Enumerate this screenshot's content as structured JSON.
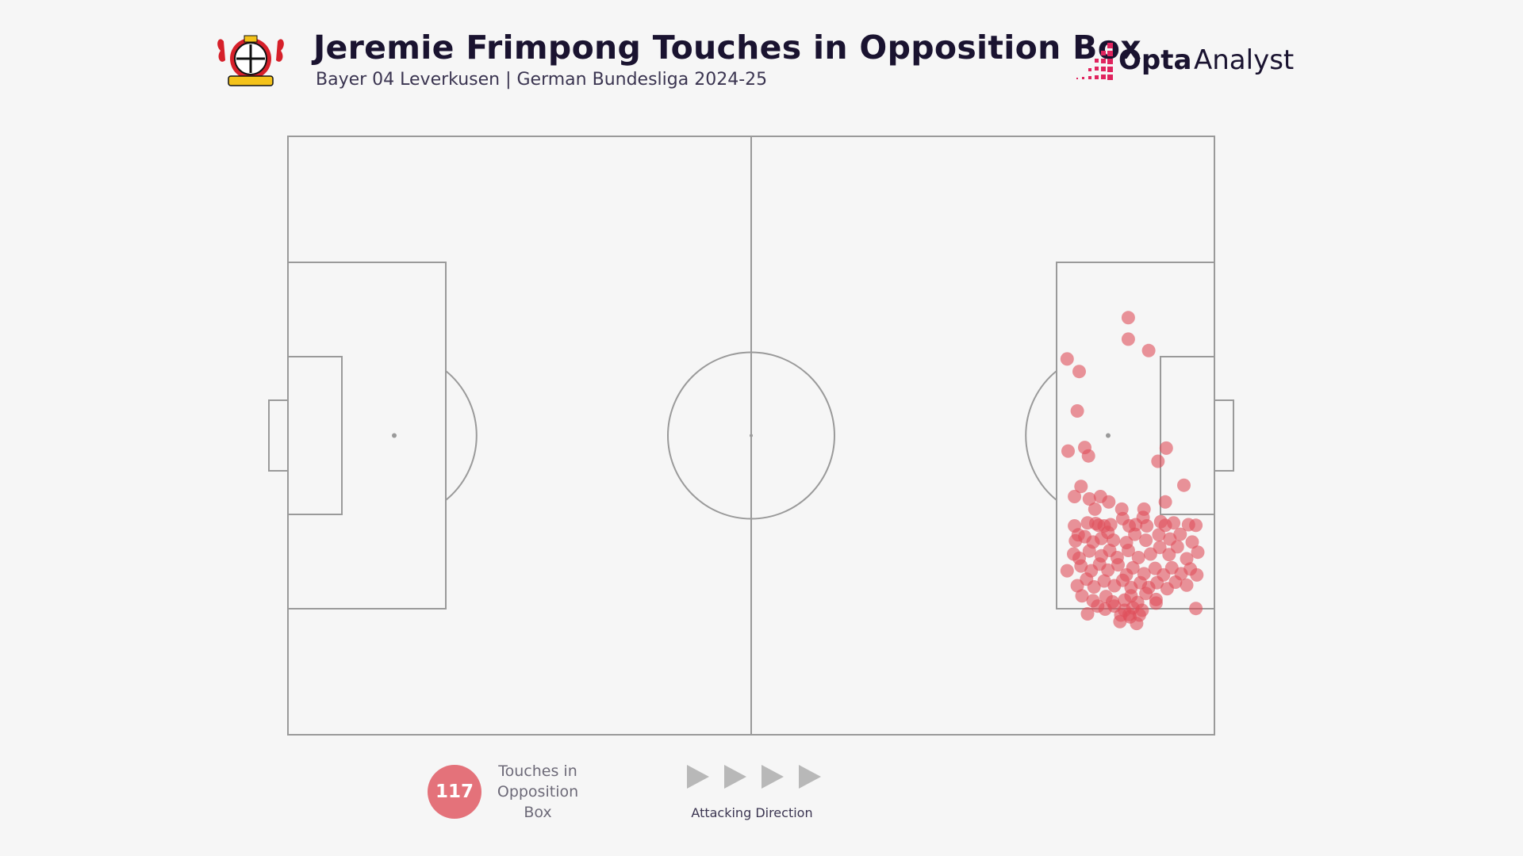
{
  "header": {
    "title": "Jeremie Frimpong Touches in Opposition Box",
    "subtitle": "Bayer 04 Leverkusen | German Bundesliga 2024-25",
    "brand_bold": "Opta",
    "brand_light": "Analyst",
    "crest_icon": "bayer-leverkusen-crest-icon",
    "brand_icon": "opta-pixel-mark-icon"
  },
  "legend": {
    "count": "117",
    "count_label": "Touches in Opposition Box",
    "direction_label": "Attacking Direction",
    "direction_icon": "play-arrow-icon"
  },
  "colors": {
    "background": "#f6f6f6",
    "pitch_lines": "#9a9a9a",
    "touch_marker": "#e04e5a",
    "legend_badge": "#e4727a"
  },
  "chart_data": {
    "type": "scatter",
    "pitch": "horizontal full pitch, attacking left to right",
    "xlim": [
      0,
      100
    ],
    "ylim": [
      0,
      100
    ],
    "total_touches": 117,
    "points": [
      [
        90.7,
        30.3
      ],
      [
        90.7,
        33.9
      ],
      [
        92.9,
        35.8
      ],
      [
        84.1,
        37.2
      ],
      [
        85.4,
        39.3
      ],
      [
        85.2,
        45.9
      ],
      [
        84.2,
        52.6
      ],
      [
        86.0,
        52.0
      ],
      [
        86.4,
        53.4
      ],
      [
        94.8,
        52.1
      ],
      [
        93.9,
        54.3
      ],
      [
        96.7,
        58.3
      ],
      [
        85.6,
        58.5
      ],
      [
        94.7,
        61.1
      ],
      [
        84.9,
        60.2
      ],
      [
        86.5,
        60.6
      ],
      [
        87.7,
        60.2
      ],
      [
        88.6,
        61.1
      ],
      [
        87.1,
        62.3
      ],
      [
        90.0,
        62.3
      ],
      [
        92.4,
        62.3
      ],
      [
        84.9,
        65.1
      ],
      [
        85.3,
        66.6
      ],
      [
        86.3,
        64.6
      ],
      [
        87.2,
        64.7
      ],
      [
        87.5,
        65.0
      ],
      [
        88.1,
        65.1
      ],
      [
        88.8,
        64.9
      ],
      [
        90.1,
        63.9
      ],
      [
        90.8,
        65.1
      ],
      [
        91.5,
        64.9
      ],
      [
        92.3,
        63.7
      ],
      [
        92.7,
        65.1
      ],
      [
        94.2,
        64.4
      ],
      [
        94.7,
        65.0
      ],
      [
        95.6,
        64.6
      ],
      [
        97.2,
        64.9
      ],
      [
        98.0,
        65.0
      ],
      [
        85.0,
        67.6
      ],
      [
        86.0,
        66.9
      ],
      [
        86.9,
        67.8
      ],
      [
        87.8,
        67.2
      ],
      [
        88.5,
        66.2
      ],
      [
        89.1,
        67.5
      ],
      [
        90.5,
        67.9
      ],
      [
        91.4,
        66.5
      ],
      [
        92.6,
        67.5
      ],
      [
        94.0,
        66.6
      ],
      [
        95.2,
        67.3
      ],
      [
        96.3,
        66.5
      ],
      [
        97.6,
        67.8
      ],
      [
        84.8,
        69.8
      ],
      [
        85.4,
        70.5
      ],
      [
        86.5,
        69.3
      ],
      [
        87.8,
        70.1
      ],
      [
        88.7,
        69.2
      ],
      [
        89.5,
        70.4
      ],
      [
        90.7,
        69.2
      ],
      [
        91.8,
        70.4
      ],
      [
        93.1,
        69.8
      ],
      [
        94.1,
        68.7
      ],
      [
        95.1,
        69.9
      ],
      [
        96.0,
        68.6
      ],
      [
        97.0,
        70.6
      ],
      [
        98.2,
        69.5
      ],
      [
        84.1,
        72.6
      ],
      [
        85.6,
        71.8
      ],
      [
        86.7,
        72.6
      ],
      [
        87.6,
        71.5
      ],
      [
        88.5,
        72.5
      ],
      [
        89.6,
        71.6
      ],
      [
        90.5,
        73.3
      ],
      [
        91.2,
        72.1
      ],
      [
        92.4,
        73.1
      ],
      [
        93.6,
        72.2
      ],
      [
        94.5,
        73.3
      ],
      [
        95.4,
        72.1
      ],
      [
        96.4,
        73.1
      ],
      [
        97.4,
        72.3
      ],
      [
        98.1,
        73.3
      ],
      [
        85.2,
        75.1
      ],
      [
        86.2,
        74.0
      ],
      [
        87.0,
        75.3
      ],
      [
        88.1,
        74.3
      ],
      [
        89.2,
        75.1
      ],
      [
        90.1,
        74.2
      ],
      [
        91.0,
        75.4
      ],
      [
        92.0,
        74.6
      ],
      [
        92.9,
        75.4
      ],
      [
        93.8,
        74.6
      ],
      [
        94.9,
        75.6
      ],
      [
        95.8,
        74.5
      ],
      [
        97.0,
        75.0
      ],
      [
        85.7,
        76.8
      ],
      [
        86.9,
        77.6
      ],
      [
        88.3,
        76.9
      ],
      [
        89.0,
        77.8
      ],
      [
        90.3,
        77.5
      ],
      [
        91.0,
        76.8
      ],
      [
        91.7,
        77.9
      ],
      [
        92.6,
        76.4
      ],
      [
        93.7,
        77.4
      ],
      [
        87.4,
        78.5
      ],
      [
        88.2,
        79.0
      ],
      [
        89.2,
        78.5
      ],
      [
        90.3,
        79.2
      ],
      [
        91.2,
        78.8
      ],
      [
        92.2,
        79.2
      ],
      [
        98.0,
        78.9
      ],
      [
        89.9,
        80.0
      ],
      [
        90.9,
        80.3
      ],
      [
        91.9,
        80.0
      ],
      [
        89.8,
        81.1
      ],
      [
        90.8,
        79.9
      ],
      [
        91.6,
        81.4
      ],
      [
        86.3,
        79.8
      ],
      [
        93.7,
        78.0
      ]
    ]
  }
}
